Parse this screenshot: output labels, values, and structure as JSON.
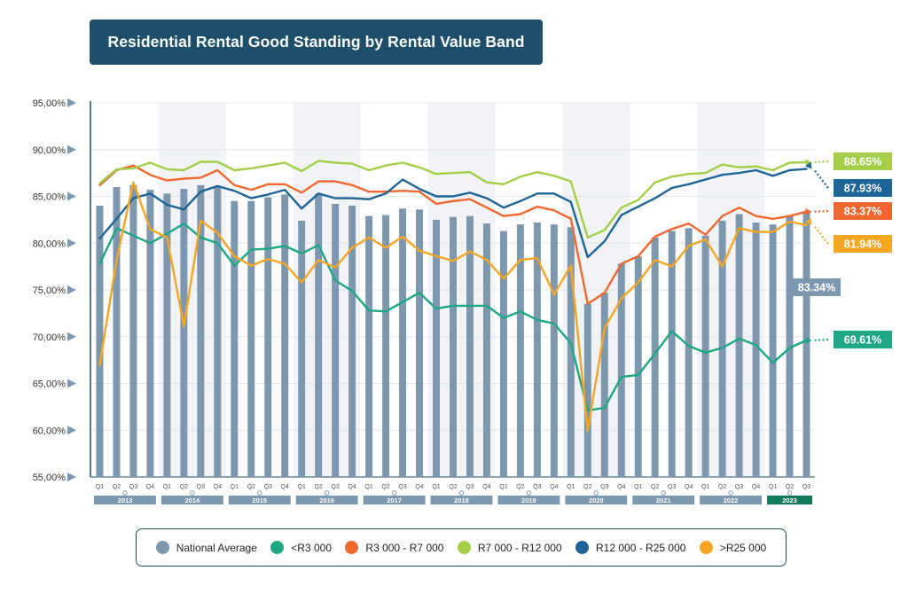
{
  "title": "Residential Rental Good Standing by Rental Value Band",
  "chart_data": {
    "type": "bar",
    "ylim": [
      55,
      95
    ],
    "yticks": [
      "55,00%",
      "60,00%",
      "65,00%",
      "70,00%",
      "75,00%",
      "80,00%",
      "85,00%",
      "90,00%",
      "95,00%"
    ],
    "quarters": [
      "Q1",
      "Q2",
      "Q3",
      "Q4",
      "Q1",
      "Q2",
      "Q3",
      "Q4",
      "Q1",
      "Q2",
      "Q3",
      "Q4",
      "Q1",
      "Q2",
      "Q3",
      "Q4",
      "Q1",
      "Q2",
      "Q3",
      "Q4",
      "Q1",
      "Q2",
      "Q3",
      "Q4",
      "Q1",
      "Q2",
      "Q3",
      "Q4",
      "Q1",
      "Q2",
      "Q3",
      "Q4",
      "Q1",
      "Q2",
      "Q3",
      "Q4",
      "Q1",
      "Q2",
      "Q3",
      "Q4",
      "Q1",
      "Q2",
      "Q3"
    ],
    "years": [
      {
        "label": "2013",
        "quarters": 4,
        "highlight": false
      },
      {
        "label": "2014",
        "quarters": 4,
        "highlight": false
      },
      {
        "label": "2015",
        "quarters": 4,
        "highlight": false
      },
      {
        "label": "2016",
        "quarters": 4,
        "highlight": false
      },
      {
        "label": "2017",
        "quarters": 4,
        "highlight": false
      },
      {
        "label": "2018",
        "quarters": 4,
        "highlight": false
      },
      {
        "label": "2019",
        "quarters": 4,
        "highlight": false
      },
      {
        "label": "2020",
        "quarters": 4,
        "highlight": false
      },
      {
        "label": "2021",
        "quarters": 4,
        "highlight": false
      },
      {
        "label": "2022",
        "quarters": 4,
        "highlight": false
      },
      {
        "label": "2023",
        "quarters": 3,
        "highlight": true
      }
    ],
    "series": [
      {
        "name": "National Average",
        "kind": "bar",
        "color": "#7d97ae",
        "values": [
          84.0,
          86.0,
          86.2,
          85.7,
          85.3,
          85.8,
          86.2,
          86.0,
          84.5,
          84.5,
          84.9,
          85.2,
          82.4,
          85.3,
          84.2,
          84.0,
          82.9,
          83.0,
          83.7,
          83.6,
          82.5,
          82.8,
          82.9,
          82.1,
          81.3,
          82.0,
          82.2,
          82.0,
          81.7,
          73.5,
          74.7,
          77.8,
          78.6,
          80.6,
          81.3,
          81.6,
          80.8,
          82.4,
          83.1,
          82.2,
          82.0,
          83.0,
          83.34
        ]
      },
      {
        "name": "<R3 000",
        "kind": "line",
        "color": "#1ea784",
        "values": [
          77.8,
          81.6,
          80.8,
          80.0,
          81.0,
          82.1,
          80.6,
          80.0,
          77.6,
          79.3,
          79.4,
          79.7,
          78.9,
          79.8,
          76.0,
          74.9,
          72.8,
          72.7,
          73.7,
          74.7,
          73.0,
          73.3,
          73.3,
          73.3,
          72.0,
          72.7,
          71.8,
          71.4,
          69.3,
          62.1,
          62.4,
          65.7,
          65.9,
          68.2,
          70.6,
          69.0,
          68.3,
          68.8,
          69.8,
          69.1,
          67.2,
          68.8,
          69.61
        ]
      },
      {
        "name": "R3 000 - R7 000",
        "kind": "line",
        "color": "#ee6830",
        "values": [
          86.2,
          87.8,
          88.3,
          87.3,
          86.7,
          86.9,
          87.0,
          87.8,
          86.2,
          85.7,
          86.3,
          86.3,
          85.4,
          86.6,
          86.6,
          86.2,
          85.5,
          85.5,
          85.6,
          85.5,
          84.2,
          84.5,
          84.7,
          83.8,
          82.9,
          83.1,
          83.9,
          83.5,
          82.6,
          73.5,
          74.7,
          77.8,
          78.6,
          80.7,
          81.5,
          82.1,
          80.9,
          82.9,
          83.8,
          82.9,
          82.6,
          82.9,
          83.37
        ]
      },
      {
        "name": "R7 000 - R12 000",
        "kind": "line",
        "color": "#a4ce48",
        "values": [
          86.4,
          87.9,
          88.0,
          88.6,
          87.9,
          87.8,
          88.7,
          88.7,
          87.8,
          88.0,
          88.3,
          88.6,
          87.7,
          88.8,
          88.6,
          88.5,
          87.8,
          88.3,
          88.6,
          88.1,
          87.4,
          87.5,
          87.6,
          86.5,
          86.3,
          87.1,
          87.6,
          87.2,
          86.6,
          80.6,
          81.4,
          83.8,
          84.6,
          86.5,
          87.1,
          87.4,
          87.5,
          88.4,
          88.1,
          88.2,
          87.8,
          88.6,
          88.65
        ]
      },
      {
        "name": "R12 000 - R25 000",
        "kind": "line",
        "color": "#1f6496",
        "values": [
          80.5,
          82.6,
          84.8,
          85.3,
          84.1,
          83.6,
          85.5,
          86.1,
          85.6,
          84.8,
          85.2,
          85.7,
          83.7,
          85.3,
          84.8,
          84.8,
          84.7,
          85.3,
          86.8,
          85.8,
          85.0,
          85.0,
          85.4,
          84.8,
          83.8,
          84.5,
          85.3,
          85.3,
          84.4,
          78.5,
          80.2,
          83.0,
          83.9,
          84.8,
          85.9,
          86.3,
          86.8,
          87.3,
          87.5,
          87.8,
          87.2,
          87.8,
          87.93
        ]
      },
      {
        "name": ">R25 000",
        "kind": "line",
        "color": "#f5a623",
        "values": [
          67.0,
          78.2,
          86.5,
          81.5,
          80.6,
          71.1,
          82.4,
          81.1,
          78.6,
          77.6,
          78.3,
          77.8,
          75.8,
          78.2,
          77.4,
          79.5,
          80.6,
          79.5,
          80.7,
          79.2,
          78.6,
          78.1,
          79.1,
          78.2,
          76.2,
          78.2,
          78.4,
          74.5,
          77.6,
          59.9,
          70.9,
          74.1,
          75.8,
          78.2,
          77.5,
          79.7,
          80.4,
          77.5,
          81.6,
          81.2,
          81.2,
          82.3,
          81.94
        ]
      }
    ],
    "end_labels": [
      {
        "series": "R7 000 - R12 000",
        "text": "88.65%",
        "y": 88.65
      },
      {
        "series": "R12 000 - R25 000",
        "text": "87.93%",
        "y": 87.93
      },
      {
        "series": "R3 000 - R7 000",
        "text": "83.37%",
        "y": 83.37
      },
      {
        "series": ">R25 000",
        "text": "81.94%",
        "y": 81.94
      },
      {
        "series": "<R3 000",
        "text": "69.61%",
        "y": 69.61
      }
    ],
    "bar_label": {
      "text": "83.34%",
      "y": 83.34
    }
  },
  "legend": [
    {
      "label": "National Average",
      "color": "#7d97ae"
    },
    {
      "label": "<R3 000",
      "color": "#1ea784"
    },
    {
      "label": "R3 000 - R7 000",
      "color": "#ee6830"
    },
    {
      "label": "R7 000 - R12 000",
      "color": "#a4ce48"
    },
    {
      "label": "R12 000 - R25 000",
      "color": "#1f6496"
    },
    {
      "label": ">R25 000",
      "color": "#f5a623"
    }
  ]
}
